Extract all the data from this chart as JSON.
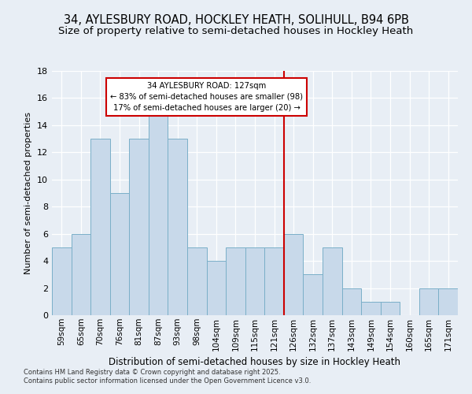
{
  "title_line1": "34, AYLESBURY ROAD, HOCKLEY HEATH, SOLIHULL, B94 6PB",
  "title_line2": "Size of property relative to semi-detached houses in Hockley Heath",
  "xlabel": "Distribution of semi-detached houses by size in Hockley Heath",
  "ylabel": "Number of semi-detached properties",
  "categories": [
    "59sqm",
    "65sqm",
    "70sqm",
    "76sqm",
    "81sqm",
    "87sqm",
    "93sqm",
    "98sqm",
    "104sqm",
    "109sqm",
    "115sqm",
    "121sqm",
    "126sqm",
    "132sqm",
    "137sqm",
    "143sqm",
    "149sqm",
    "154sqm",
    "160sqm",
    "165sqm",
    "171sqm"
  ],
  "values": [
    5,
    6,
    13,
    9,
    13,
    15,
    13,
    5,
    4,
    5,
    5,
    5,
    6,
    3,
    5,
    2,
    1,
    1,
    0,
    2,
    2
  ],
  "bar_color": "#c8d9ea",
  "bar_edge_color": "#7aafc8",
  "vline_color": "#cc0000",
  "vline_x": 12.0,
  "annotation_title": "34 AYLESBURY ROAD: 127sqm",
  "annotation_line1": "← 83% of semi-detached houses are smaller (98)",
  "annotation_line2": "17% of semi-detached houses are larger (20) →",
  "annotation_box_facecolor": "#ffffff",
  "annotation_box_edgecolor": "#cc0000",
  "ylim": [
    0,
    18
  ],
  "yticks": [
    0,
    2,
    4,
    6,
    8,
    10,
    12,
    14,
    16,
    18
  ],
  "bg_color": "#e8eef5",
  "grid_color": "#ffffff",
  "title_fontsize": 10.5,
  "subtitle_fontsize": 9.5,
  "footer_line1": "Contains HM Land Registry data © Crown copyright and database right 2025.",
  "footer_line2": "Contains public sector information licensed under the Open Government Licence v3.0."
}
